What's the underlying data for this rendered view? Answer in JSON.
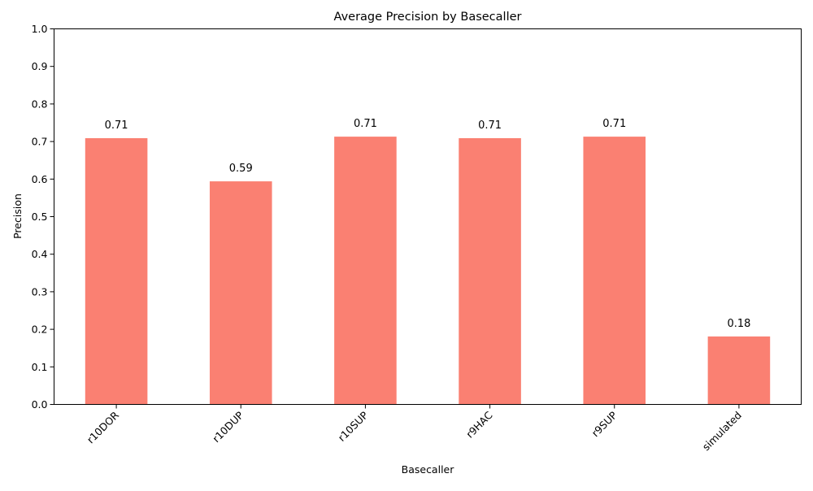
{
  "chart_data": {
    "type": "bar",
    "title": "Average Precision by Basecaller",
    "xlabel": "Basecaller",
    "ylabel": "Precision",
    "categories": [
      "r10DOR",
      "r10DUP",
      "r10SUP",
      "r9HAC",
      "r9SUP",
      "simulated"
    ],
    "values": [
      0.709,
      0.594,
      0.713,
      0.709,
      0.713,
      0.181
    ],
    "data_labels": [
      "0.71",
      "0.59",
      "0.71",
      "0.71",
      "0.71",
      "0.18"
    ],
    "ylim": [
      0,
      1.0
    ],
    "yticks": [
      0.0,
      0.1,
      0.2,
      0.3,
      0.4,
      0.5,
      0.6,
      0.7,
      0.8,
      0.9,
      1.0
    ],
    "ytick_labels": [
      "0.0",
      "0.1",
      "0.2",
      "0.3",
      "0.4",
      "0.5",
      "0.6",
      "0.7",
      "0.8",
      "0.9",
      "1.0"
    ],
    "bar_color": "#fa8072",
    "grid": false,
    "legend": "none"
  }
}
